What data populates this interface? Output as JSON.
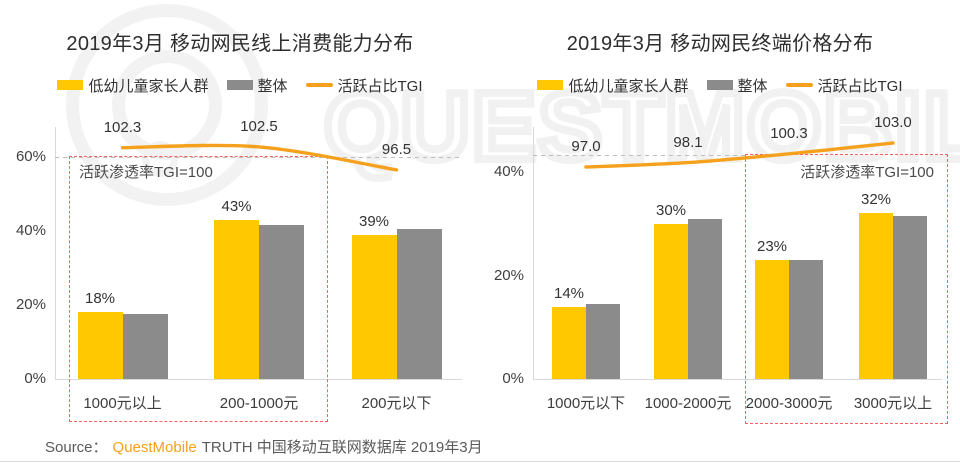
{
  "page": {
    "watermark_text": "QUESTMOBILE",
    "source_prefix": "Source：",
    "source_brand": "QuestMobile",
    "source_suffix": "TRUTH 中国移动互联网数据库 2019年3月"
  },
  "colors": {
    "primary_yellow": "#FFC800",
    "overall_gray": "#8B8B8B",
    "tgi_orange": "#F5A11E",
    "annotation_red": "#FF5F5F"
  },
  "charts": [
    {
      "title": "2019年3月 移动网民线上消费能力分布",
      "annotation": "活跃渗透率TGI=100",
      "chart_data": {
        "type": "grouped-bar+line",
        "categories": [
          "1000元以上",
          "200-1000元",
          "200元以下"
        ],
        "yticks": [
          "0%",
          "20%",
          "40%",
          "60%"
        ],
        "ylim": [
          0,
          60
        ],
        "tgi_reference": 100,
        "series": [
          {
            "name": "低幼儿童家长人群",
            "role": "bar",
            "color_key": "primary_yellow",
            "values": [
              18,
              43,
              39
            ],
            "labels": [
              "18%",
              "43%",
              "39%"
            ]
          },
          {
            "name": "整体",
            "role": "bar",
            "color_key": "overall_gray",
            "values": [
              17.5,
              41.5,
              40.5
            ]
          },
          {
            "name": "活跃占比TGI",
            "role": "line",
            "axis": "secondary",
            "color_key": "tgi_orange",
            "values": [
              102.3,
              102.5,
              96.5
            ],
            "labels": [
              "102.3",
              "102.5",
              "96.5"
            ]
          }
        ]
      }
    },
    {
      "title": "2019年3月 移动网民终端价格分布",
      "annotation": "活跃渗透率TGI=100",
      "chart_data": {
        "type": "grouped-bar+line",
        "categories": [
          "1000元以下",
          "1000-2000元",
          "2000-3000元",
          "3000元以上"
        ],
        "yticks": [
          "0%",
          "20%",
          "40%"
        ],
        "ylim": [
          0,
          40
        ],
        "tgi_reference": 100,
        "series": [
          {
            "name": "低幼儿童家长人群",
            "role": "bar",
            "color_key": "primary_yellow",
            "values": [
              14,
              30,
              23,
              32
            ],
            "labels": [
              "14%",
              "30%",
              "23%",
              "32%"
            ]
          },
          {
            "name": "整体",
            "role": "bar",
            "color_key": "overall_gray",
            "values": [
              14.5,
              31,
              23,
              31.5
            ]
          },
          {
            "name": "活跃占比TGI",
            "role": "line",
            "axis": "secondary",
            "color_key": "tgi_orange",
            "values": [
              97.0,
              98.1,
              100.3,
              103.0
            ],
            "labels": [
              "97.0",
              "98.1",
              "100.3",
              "103.0"
            ]
          }
        ]
      }
    }
  ]
}
